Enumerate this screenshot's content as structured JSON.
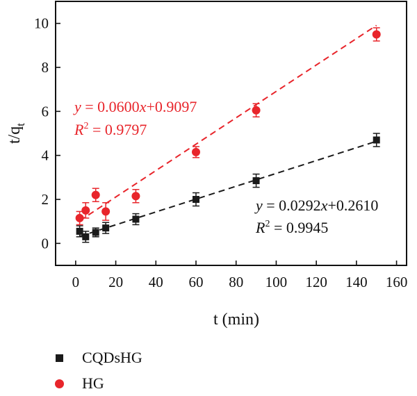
{
  "chart_data": {
    "type": "scatter",
    "xlabel": "t (min)",
    "ylabel_main": "t/q",
    "ylabel_sub": "t",
    "xlim": [
      -10,
      165
    ],
    "ylim": [
      -1,
      11
    ],
    "xticks": [
      0,
      20,
      40,
      60,
      80,
      100,
      120,
      140,
      160
    ],
    "yticks": [
      0,
      2,
      4,
      6,
      8,
      10
    ],
    "grid": false,
    "legend_position": "bottom-left, below plot",
    "series": [
      {
        "name": "CQDsHG",
        "marker": "square",
        "color": "#1a1a1a",
        "x": [
          2,
          5,
          10,
          15,
          30,
          60,
          90,
          150
        ],
        "y": [
          0.55,
          0.3,
          0.5,
          0.7,
          1.1,
          2.0,
          2.85,
          4.7
        ],
        "yerr": [
          0.25,
          0.25,
          0.2,
          0.25,
          0.25,
          0.3,
          0.3,
          0.3
        ],
        "fit": {
          "slope": 0.0292,
          "intercept": 0.261,
          "x_range": [
            2,
            150
          ],
          "style": "dashed"
        },
        "equation": {
          "y": "y",
          "mid": " = 0.0292",
          "x": "x",
          "tail": "+0.2610"
        },
        "r2": {
          "R": "R",
          "sup": "2",
          "tail": " = 0.9945"
        }
      },
      {
        "name": "HG",
        "marker": "circle",
        "color": "#e8252b",
        "x": [
          2,
          5,
          10,
          15,
          30,
          60,
          90,
          150
        ],
        "y": [
          1.15,
          1.5,
          2.2,
          1.45,
          2.15,
          4.15,
          6.05,
          9.5
        ],
        "yerr": [
          0.3,
          0.35,
          0.3,
          0.4,
          0.3,
          0.25,
          0.3,
          0.3
        ],
        "fit": {
          "slope": 0.06,
          "intercept": 0.9097,
          "x_range": [
            2,
            150
          ],
          "style": "dashed"
        },
        "equation": {
          "y": "y",
          "mid": " = 0.0600",
          "x": "x",
          "tail": "+0.9097"
        },
        "r2": {
          "R": "R",
          "sup": "2",
          "tail": " = 0.9797"
        }
      }
    ]
  }
}
